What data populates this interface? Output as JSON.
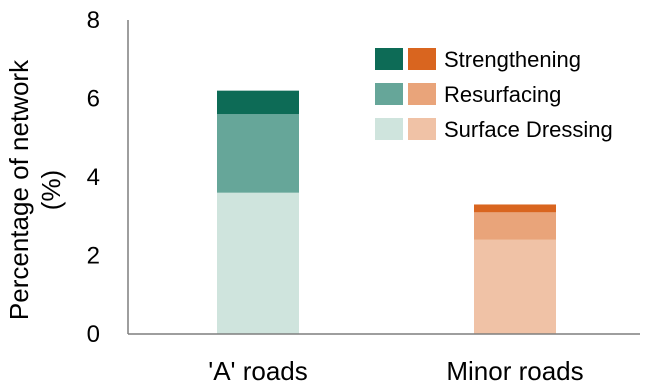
{
  "chart_data": {
    "type": "bar",
    "stacked": true,
    "categories": [
      "'A' roads",
      "Minor roads"
    ],
    "ylabel_lines": [
      "Percentage of network",
      "(%)"
    ],
    "ylim": [
      0,
      8
    ],
    "yticks": [
      0,
      2,
      4,
      6,
      8
    ],
    "grid": false,
    "legend_position": "top-right",
    "series": [
      {
        "name": "Surface Dressing",
        "values": [
          3.6,
          2.4
        ],
        "colors": [
          "#cfe4dd",
          "#f0c2a6"
        ]
      },
      {
        "name": "Resurfacing",
        "values": [
          2.0,
          0.7
        ],
        "colors": [
          "#66a699",
          "#e9a47a"
        ]
      },
      {
        "name": "Strengthening",
        "values": [
          0.6,
          0.2
        ],
        "colors": [
          "#0d6b56",
          "#d9651f"
        ]
      }
    ]
  }
}
